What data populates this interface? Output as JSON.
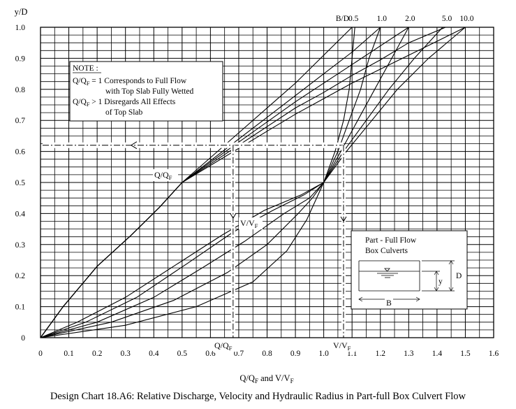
{
  "chart_data": {
    "type": "line",
    "xlabel_main": "Q/Q",
    "xlabel_sub1": "F",
    "xlabel_mid": " and V/V",
    "xlabel_sub2": "F",
    "ylabel": "y/D",
    "xlim": [
      0,
      1.6
    ],
    "ylim": [
      0,
      1.0
    ],
    "x_ticks": [
      "0",
      "0.1",
      "0.2",
      "0.3",
      "0.4",
      "0.5",
      "0.6",
      "0.7",
      "0.8",
      "0.9",
      "1.0",
      "1.1",
      "1.2",
      "1.3",
      "1.4",
      "1.5",
      "1.6"
    ],
    "y_ticks": [
      "0",
      "0.1",
      "0.2",
      "0.3",
      "0.4",
      "0.5",
      "0.6",
      "0.7",
      "0.8",
      "0.9",
      "1.0"
    ],
    "grid": true,
    "bd_label": "B/D",
    "bd_values": [
      "0.5",
      "1.0",
      "2.0",
      "5.0",
      "10.0"
    ],
    "discharge_series": [
      {
        "bd": "0.5",
        "points": [
          [
            0,
            0
          ],
          [
            0.04,
            0.05
          ],
          [
            0.08,
            0.1
          ],
          [
            0.2,
            0.23
          ],
          [
            0.32,
            0.33
          ],
          [
            0.42,
            0.42
          ],
          [
            0.5,
            0.5
          ],
          [
            0.6,
            0.58
          ],
          [
            0.7,
            0.66
          ],
          [
            0.8,
            0.74
          ],
          [
            0.9,
            0.82
          ],
          [
            1.0,
            0.91
          ],
          [
            1.1,
            1.0
          ]
        ]
      },
      {
        "bd": "1.0",
        "points": [
          [
            0,
            0
          ],
          [
            0.04,
            0.05
          ],
          [
            0.08,
            0.1
          ],
          [
            0.2,
            0.23
          ],
          [
            0.32,
            0.33
          ],
          [
            0.42,
            0.42
          ],
          [
            0.5,
            0.5
          ],
          [
            0.6,
            0.57
          ],
          [
            0.7,
            0.64
          ],
          [
            0.8,
            0.71
          ],
          [
            0.9,
            0.78
          ],
          [
            1.0,
            0.85
          ],
          [
            1.1,
            0.92
          ],
          [
            1.2,
            1.0
          ]
        ]
      },
      {
        "bd": "2.0",
        "points": [
          [
            0,
            0
          ],
          [
            0.04,
            0.05
          ],
          [
            0.08,
            0.1
          ],
          [
            0.2,
            0.23
          ],
          [
            0.32,
            0.33
          ],
          [
            0.42,
            0.42
          ],
          [
            0.5,
            0.5
          ],
          [
            0.6,
            0.565
          ],
          [
            0.7,
            0.63
          ],
          [
            0.8,
            0.695
          ],
          [
            0.9,
            0.76
          ],
          [
            1.0,
            0.82
          ],
          [
            1.1,
            0.88
          ],
          [
            1.2,
            0.94
          ],
          [
            1.3,
            1.0
          ]
        ]
      },
      {
        "bd": "5.0",
        "points": [
          [
            0,
            0
          ],
          [
            0.04,
            0.05
          ],
          [
            0.08,
            0.1
          ],
          [
            0.2,
            0.23
          ],
          [
            0.32,
            0.33
          ],
          [
            0.42,
            0.42
          ],
          [
            0.5,
            0.5
          ],
          [
            0.6,
            0.56
          ],
          [
            0.7,
            0.62
          ],
          [
            0.8,
            0.68
          ],
          [
            0.9,
            0.74
          ],
          [
            1.0,
            0.79
          ],
          [
            1.1,
            0.845
          ],
          [
            1.2,
            0.895
          ],
          [
            1.3,
            0.95
          ],
          [
            1.43,
            1.0
          ]
        ]
      },
      {
        "bd": "10.0",
        "points": [
          [
            0,
            0
          ],
          [
            0.04,
            0.05
          ],
          [
            0.08,
            0.1
          ],
          [
            0.2,
            0.23
          ],
          [
            0.32,
            0.33
          ],
          [
            0.42,
            0.42
          ],
          [
            0.5,
            0.5
          ],
          [
            0.6,
            0.555
          ],
          [
            0.7,
            0.61
          ],
          [
            0.8,
            0.665
          ],
          [
            0.9,
            0.72
          ],
          [
            1.0,
            0.77
          ],
          [
            1.1,
            0.82
          ],
          [
            1.2,
            0.865
          ],
          [
            1.3,
            0.91
          ],
          [
            1.4,
            0.955
          ],
          [
            1.5,
            1.0
          ]
        ]
      }
    ],
    "velocity_series": [
      {
        "bd": "0.5",
        "points": [
          [
            0,
            0
          ],
          [
            0.3,
            0.04
          ],
          [
            0.55,
            0.1
          ],
          [
            0.75,
            0.18
          ],
          [
            0.87,
            0.28
          ],
          [
            0.94,
            0.38
          ],
          [
            0.97,
            0.44
          ],
          [
            1.0,
            0.5
          ],
          [
            1.04,
            0.6
          ],
          [
            1.07,
            0.7
          ],
          [
            1.09,
            0.8
          ],
          [
            1.1,
            0.9
          ],
          [
            1.11,
            1.0
          ]
        ]
      },
      {
        "bd": "1.0",
        "points": [
          [
            0,
            0
          ],
          [
            0.25,
            0.05
          ],
          [
            0.47,
            0.12
          ],
          [
            0.66,
            0.21
          ],
          [
            0.8,
            0.3
          ],
          [
            0.91,
            0.4
          ],
          [
            0.96,
            0.45
          ],
          [
            1.0,
            0.5
          ],
          [
            1.05,
            0.6
          ],
          [
            1.09,
            0.7
          ],
          [
            1.13,
            0.8
          ],
          [
            1.16,
            0.9
          ],
          [
            1.2,
            1.0
          ]
        ]
      },
      {
        "bd": "2.0",
        "points": [
          [
            0,
            0
          ],
          [
            0.2,
            0.05
          ],
          [
            0.4,
            0.13
          ],
          [
            0.58,
            0.23
          ],
          [
            0.72,
            0.31
          ],
          [
            0.86,
            0.4
          ],
          [
            0.95,
            0.45
          ],
          [
            1.0,
            0.5
          ],
          [
            1.06,
            0.6
          ],
          [
            1.12,
            0.7
          ],
          [
            1.18,
            0.8
          ],
          [
            1.24,
            0.9
          ],
          [
            1.3,
            1.0
          ]
        ]
      },
      {
        "bd": "5.0",
        "points": [
          [
            0,
            0
          ],
          [
            0.16,
            0.05
          ],
          [
            0.34,
            0.13
          ],
          [
            0.52,
            0.24
          ],
          [
            0.68,
            0.34
          ],
          [
            0.82,
            0.41
          ],
          [
            0.93,
            0.46
          ],
          [
            1.0,
            0.5
          ],
          [
            1.07,
            0.6
          ],
          [
            1.15,
            0.7
          ],
          [
            1.23,
            0.8
          ],
          [
            1.32,
            0.9
          ],
          [
            1.42,
            1.0
          ]
        ]
      },
      {
        "bd": "10.0",
        "points": [
          [
            0,
            0
          ],
          [
            0.13,
            0.05
          ],
          [
            0.3,
            0.13
          ],
          [
            0.47,
            0.23
          ],
          [
            0.64,
            0.33
          ],
          [
            0.79,
            0.41
          ],
          [
            0.92,
            0.46
          ],
          [
            1.0,
            0.5
          ],
          [
            1.08,
            0.6
          ],
          [
            1.17,
            0.7
          ],
          [
            1.26,
            0.8
          ],
          [
            1.37,
            0.9
          ],
          [
            1.5,
            1.0
          ]
        ]
      }
    ],
    "example_y": 0.62,
    "example_q": 0.68,
    "example_v": 1.07,
    "label_qqf_curve": "Q/Q",
    "label_qqf_sub": "F",
    "label_vvf_curve": "V/V",
    "label_vvf_sub": "F",
    "note": {
      "heading": "NOTE :",
      "line1_pre": "Q/Q",
      "line1_sub": "F",
      "line1_post": " = 1 Corresponds to Full Flow",
      "line2": "with Top Slab Fully Wetted",
      "line3_pre": "Q/Q",
      "line3_sub": "F",
      "line3_post": " > 1 Disregards All Effects",
      "line4": "of Top Slab"
    },
    "inset": {
      "title1": "Part - Full Flow",
      "title2": "Box Culverts",
      "label_d": "D",
      "label_y": "y",
      "label_b": "B"
    }
  },
  "caption": "Design Chart 18.A6:  Relative Discharge, Velocity and Hydraulic Radius in Part-full Box Culvert Flow"
}
